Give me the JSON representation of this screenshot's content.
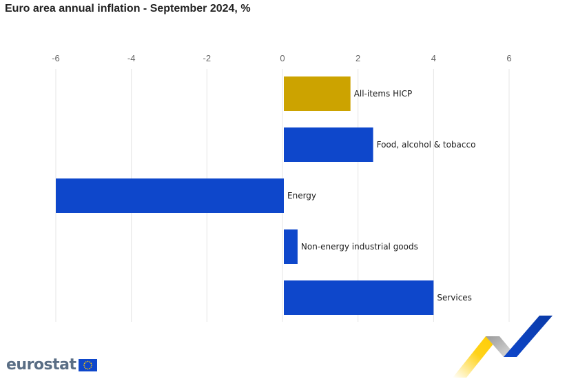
{
  "title": "Euro area annual inflation - September 2024, %",
  "logo_text": "eurostat",
  "colors": {
    "highlight_bar": "#cca300",
    "bar": "#0e47cb",
    "grid": "#e4e4e4",
    "logo_blue": "#0e47cb",
    "logo_yellow": "#ffcc00"
  },
  "chart_data": {
    "type": "bar",
    "orientation": "horizontal",
    "title": "Euro area annual inflation - September 2024, %",
    "categories": [
      "All-items HICP",
      "Food, alcohol & tobacco",
      "Energy",
      "Non-energy industrial goods",
      "Services"
    ],
    "values": [
      1.8,
      2.4,
      -6.0,
      0.4,
      4.0
    ],
    "xlim": [
      -6,
      6
    ],
    "xticks": [
      -6,
      -4,
      -2,
      0,
      2,
      4,
      6
    ],
    "xaxis_position": "top",
    "grid": true,
    "legend": "none"
  }
}
